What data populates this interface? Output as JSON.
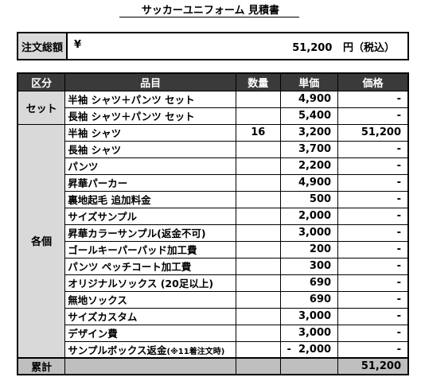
{
  "title": "サッカーユニフォーム 見積書",
  "summary": {
    "label": "注文総額",
    "currency": "¥",
    "amount": "51,200",
    "suffix": "円（税込）"
  },
  "table": {
    "headers": [
      "区分",
      "品目",
      "数量",
      "単価",
      "価格"
    ],
    "groups": [
      {
        "category": "セット",
        "rows": [
          {
            "item": "半袖 シャツ＋パンツ セット",
            "qty": "",
            "price": "4,900",
            "total": "-"
          },
          {
            "item": "長袖 シャツ＋パンツ セット",
            "qty": "",
            "price": "5,400",
            "total": "-"
          }
        ]
      },
      {
        "category": "各個",
        "rows": [
          {
            "item": "半袖 シャツ",
            "qty": "16",
            "price": "3,200",
            "total": "51,200"
          },
          {
            "item": "長袖 シャツ",
            "qty": "",
            "price": "3,700",
            "total": "-"
          },
          {
            "item": "パンツ",
            "qty": "",
            "price": "2,200",
            "total": "-"
          },
          {
            "item": "昇華パーカー",
            "qty": "",
            "price": "4,900",
            "total": "-"
          },
          {
            "item": "裏地起毛 追加料金",
            "qty": "",
            "price": "500",
            "total": "-"
          },
          {
            "item": "サイズサンプル",
            "qty": "",
            "price": "2,000",
            "total": "-"
          },
          {
            "item": "昇華カラーサンプル(返金不可)",
            "qty": "",
            "price": "3,000",
            "total": "-"
          },
          {
            "item": "ゴールキーパーパッド加工費",
            "qty": "",
            "price": "200",
            "total": "-"
          },
          {
            "item": "パンツ ペッチコート加工費",
            "qty": "",
            "price": "300",
            "total": "-"
          },
          {
            "item": "オリジナルソックス (20足以上)",
            "qty": "",
            "price": "690",
            "total": "-"
          },
          {
            "item": "無地ソックス",
            "qty": "",
            "price": "690",
            "total": "-"
          },
          {
            "item": "サイズカスタム",
            "qty": "",
            "price": "3,000",
            "total": "-"
          },
          {
            "item": "デザイン費",
            "qty": "",
            "price": "3,000",
            "total": "-"
          },
          {
            "item": "サンプルボックス返金",
            "item_note": "(※11着注文時)",
            "qty": "",
            "price_sign": "-",
            "price": "2,000",
            "total": "-"
          }
        ]
      }
    ],
    "total_label": "累計",
    "total_value": "51,200"
  }
}
